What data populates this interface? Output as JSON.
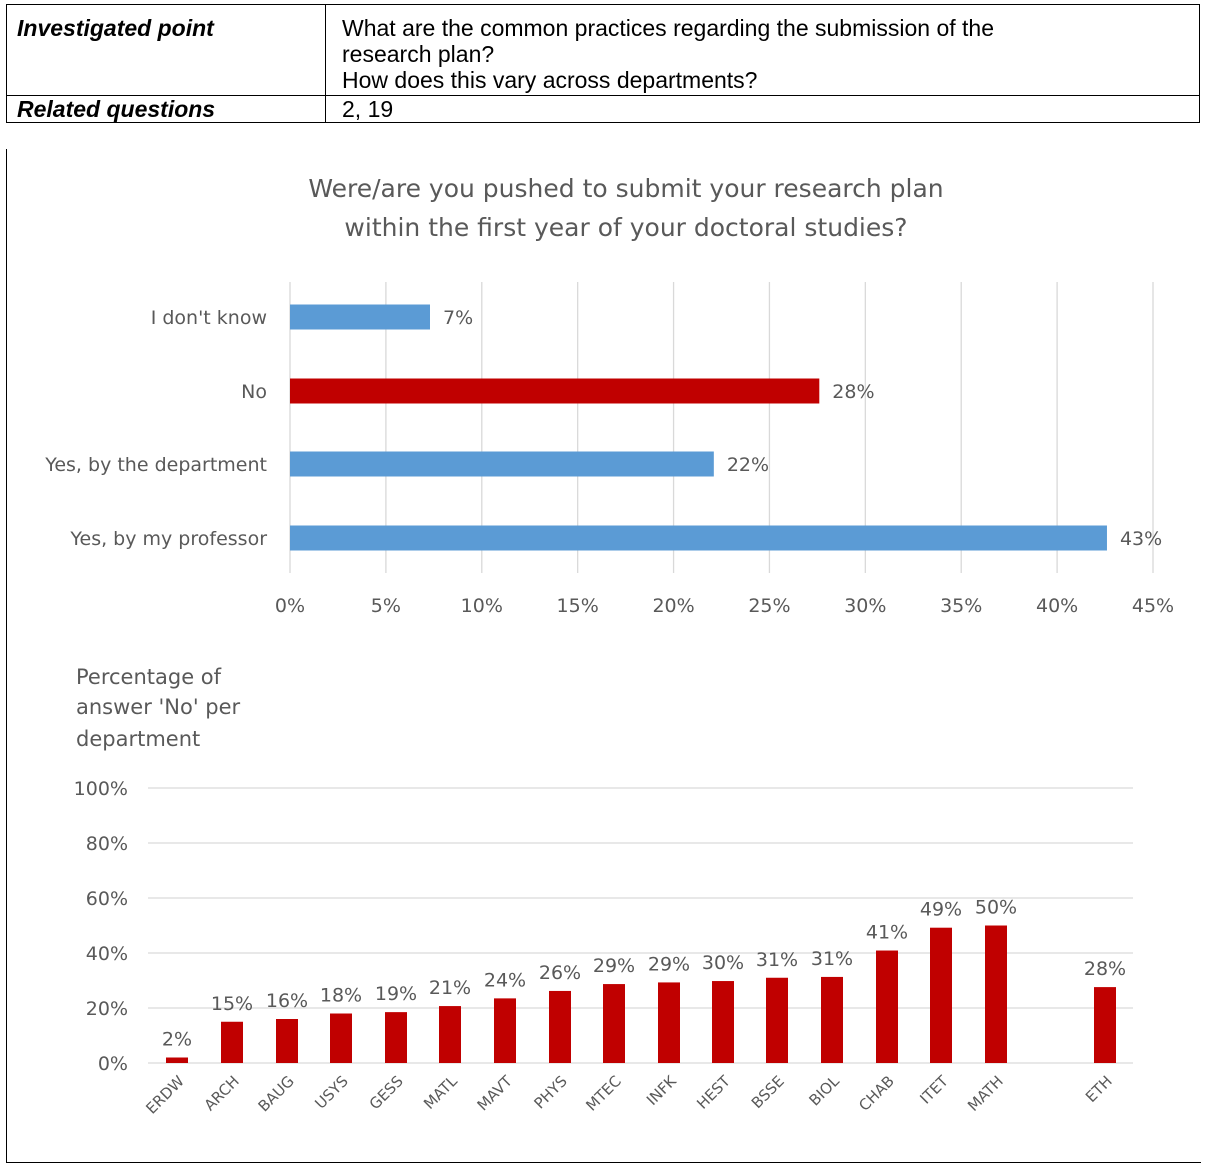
{
  "table": {
    "rows": [
      {
        "header": "Investigated point",
        "lines": [
          "What are the common practices regarding the submission of the",
          "research plan?",
          "How does this vary across departments?"
        ]
      },
      {
        "header": "Related questions",
        "lines": [
          "2, 19"
        ]
      }
    ]
  },
  "colors": {
    "blue": "#5b9bd5",
    "red": "#c00000",
    "grid": "#d9d9d9",
    "text": "#595959"
  },
  "chart_data": [
    {
      "type": "bar",
      "orientation": "horizontal",
      "title": "Were/are you pushed to submit your research plan within the first year of your doctoral studies?",
      "title_lines": [
        "Were/are you pushed to submit your research plan",
        "within the first year of your doctoral studies?"
      ],
      "categories": [
        "I don't know",
        "No",
        "Yes, by the department",
        "Yes, by my professor"
      ],
      "values": [
        7.3,
        27.6,
        22.1,
        42.6
      ],
      "data_labels": [
        "7%",
        "28%",
        "22%",
        "43%"
      ],
      "bar_colors": [
        "#5b9bd5",
        "#c00000",
        "#5b9bd5",
        "#5b9bd5"
      ],
      "xlim": [
        0,
        45
      ],
      "xticks": [
        0,
        5,
        10,
        15,
        20,
        25,
        30,
        35,
        40,
        45
      ],
      "xtick_labels": [
        "0%",
        "5%",
        "10%",
        "15%",
        "20%",
        "25%",
        "30%",
        "35%",
        "40%",
        "45%"
      ],
      "grid": "vertical"
    },
    {
      "type": "bar",
      "orientation": "vertical",
      "title": "Percentage of answer 'No' per department",
      "title_lines": [
        "Percentage of",
        "answer 'No' per",
        "department"
      ],
      "categories": [
        "ERDW",
        "ARCH",
        "BAUG",
        "USYS",
        "GESS",
        "MATL",
        "MAVT",
        "PHYS",
        "MTEC",
        "INFK",
        "HEST",
        "BSSE",
        "BIOL",
        "CHAB",
        "ITET",
        "MATH",
        "ETH"
      ],
      "values": [
        2,
        15,
        16,
        18,
        18.5,
        20.7,
        23.5,
        26.2,
        28.7,
        29.3,
        29.8,
        31,
        31.3,
        40.9,
        49.2,
        50,
        27.6
      ],
      "data_labels": [
        "2%",
        "15%",
        "16%",
        "18%",
        "19%",
        "21%",
        "24%",
        "26%",
        "29%",
        "29%",
        "30%",
        "31%",
        "31%",
        "41%",
        "49%",
        "50%",
        "28%"
      ],
      "bar_color": "#c00000",
      "ylim": [
        0,
        100
      ],
      "yticks": [
        0,
        20,
        40,
        60,
        80,
        100
      ],
      "ytick_labels": [
        "0%",
        "20%",
        "40%",
        "60%",
        "80%",
        "100%"
      ],
      "grid": "horizontal"
    }
  ]
}
